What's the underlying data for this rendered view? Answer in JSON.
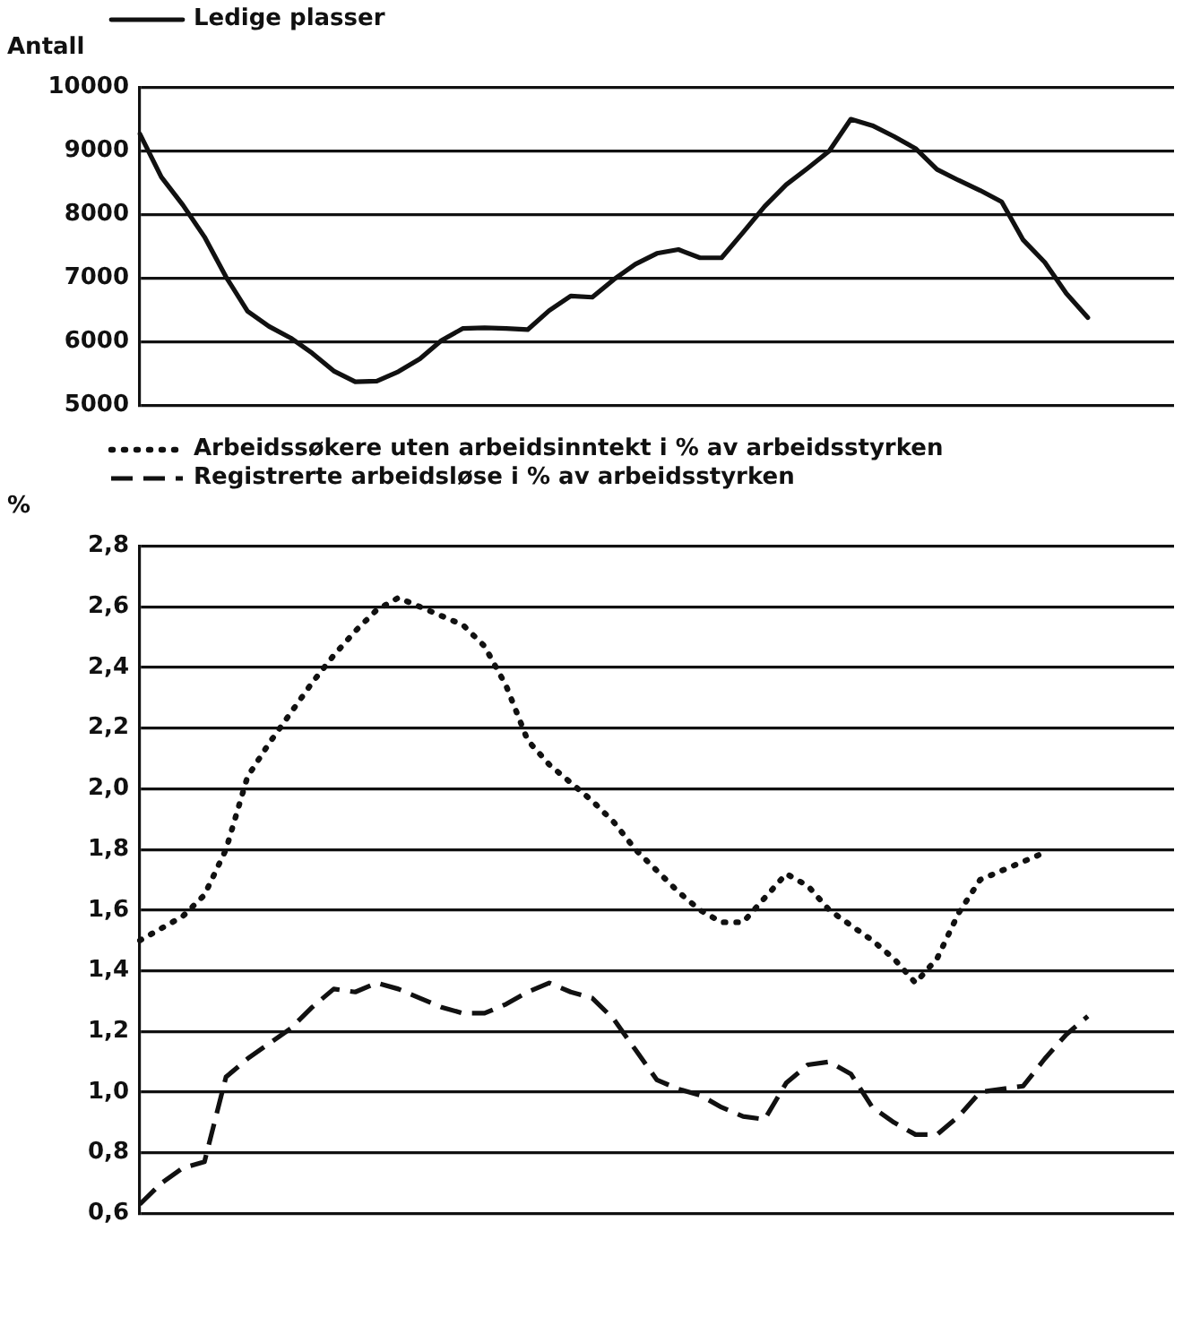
{
  "chart_data": [
    {
      "type": "line",
      "ylabel": "Antall",
      "legend": "top left",
      "grid": "y",
      "tick_labels": "y",
      "marker": "none",
      "categories": [
        null,
        null,
        null,
        null,
        null,
        null,
        null,
        null,
        null,
        null,
        null,
        null,
        null,
        null,
        null,
        null,
        null,
        null,
        null,
        null,
        null,
        null,
        null,
        null,
        null,
        null,
        null,
        null,
        null,
        null,
        null,
        null,
        null,
        null,
        null,
        null,
        null,
        null,
        null,
        null,
        null,
        null,
        null,
        null,
        null,
        null,
        null,
        null,
        null
      ],
      "ylim": [
        5000,
        10000
      ],
      "yticks": [
        5000,
        6000,
        7000,
        8000,
        9000,
        10000
      ],
      "series": [
        {
          "name": "Ledige plasser",
          "color": "#111111",
          "line_style": "solid",
          "values": [
            9270,
            8590,
            8150,
            7650,
            7020,
            6480,
            6240,
            6060,
            5820,
            5540,
            5370,
            5380,
            5530,
            5730,
            6020,
            6210,
            6220,
            6210,
            6190,
            6490,
            6720,
            6700,
            6980,
            7220,
            7390,
            7450,
            7320,
            7320,
            7720,
            8130,
            8470,
            8730,
            9000,
            9500,
            9400,
            9230,
            9040,
            8710,
            8540,
            8380,
            8200,
            7600,
            7250,
            6760,
            6380,
            null,
            null,
            null,
            null
          ]
        }
      ]
    },
    {
      "type": "line",
      "ylabel": "%",
      "legend": "top left",
      "grid": "y",
      "tick_labels": "y",
      "marker": "none",
      "categories": [
        null,
        null,
        null,
        null,
        null,
        null,
        null,
        null,
        null,
        null,
        null,
        null,
        null,
        null,
        null,
        null,
        null,
        null,
        null,
        null,
        null,
        null,
        null,
        null,
        null,
        null,
        null,
        null,
        null,
        null,
        null,
        null,
        null,
        null,
        null,
        null,
        null,
        null,
        null,
        null,
        null,
        null,
        null,
        null,
        null,
        null,
        null,
        null,
        null
      ],
      "ylim": [
        0.6,
        2.8
      ],
      "yticks": [
        {
          "value": 0.6,
          "label": "0,6"
        },
        {
          "value": 0.8,
          "label": "0,8"
        },
        {
          "value": 1.0,
          "label": "1,0"
        },
        {
          "value": 1.2,
          "label": "1,2"
        },
        {
          "value": 1.4,
          "label": "1,4"
        },
        {
          "value": 1.6,
          "label": "1,6"
        },
        {
          "value": 1.8,
          "label": "1,8"
        },
        {
          "value": 2.0,
          "label": "2,0"
        },
        {
          "value": 2.2,
          "label": "2,2"
        },
        {
          "value": 2.4,
          "label": "2,4"
        },
        {
          "value": 2.6,
          "label": "2,6"
        },
        {
          "value": 2.8,
          "label": "2,8"
        }
      ],
      "series": [
        {
          "name": "Arbeidssøkere uten arbeidsinntekt i % av arbeidsstyrken",
          "color": "#111111",
          "line_style": "dotted",
          "values": [
            1.5,
            1.54,
            1.58,
            1.65,
            1.8,
            2.04,
            2.15,
            2.25,
            2.35,
            2.44,
            2.52,
            2.59,
            2.63,
            2.6,
            2.57,
            2.54,
            2.47,
            2.34,
            2.16,
            2.08,
            2.02,
            1.96,
            1.89,
            1.8,
            1.73,
            1.66,
            1.6,
            1.56,
            1.56,
            1.64,
            1.72,
            1.68,
            1.6,
            1.55,
            1.5,
            1.44,
            1.36,
            1.44,
            1.59,
            1.7,
            1.73,
            1.76,
            1.79,
            null,
            null,
            null,
            null,
            null,
            null
          ]
        },
        {
          "name": "Registrerte arbeidsløse i % av arbeidsstyrken",
          "color": "#111111",
          "line_style": "dashed",
          "values": [
            0.63,
            0.7,
            0.75,
            0.77,
            1.05,
            1.11,
            1.16,
            1.21,
            1.28,
            1.34,
            1.33,
            1.36,
            1.34,
            1.31,
            1.28,
            1.26,
            1.26,
            1.29,
            1.33,
            1.36,
            1.33,
            1.31,
            1.24,
            1.14,
            1.04,
            1.01,
            0.99,
            0.95,
            0.92,
            0.91,
            1.03,
            1.09,
            1.1,
            1.06,
            0.95,
            0.9,
            0.86,
            0.86,
            0.92,
            1.0,
            1.01,
            1.02,
            1.11,
            1.19,
            1.25,
            null,
            null,
            null,
            null
          ]
        }
      ]
    }
  ]
}
